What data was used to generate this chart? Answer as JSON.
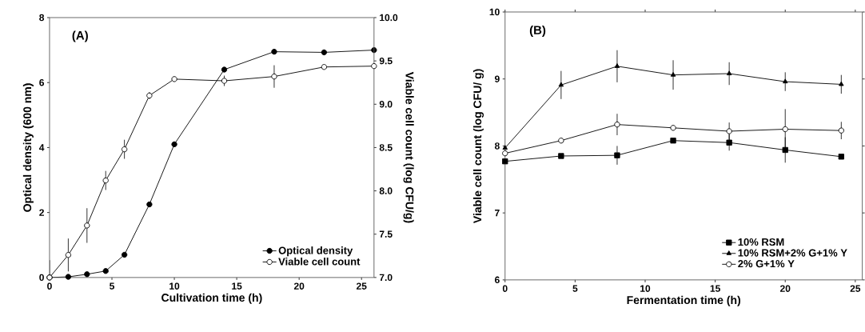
{
  "chart_data": [
    {
      "type": "line",
      "xlabel": "Cultivation time (h)",
      "ylabel": "Optical density (600 nm)",
      "y2label": "Viable cell count (log CFU/g)",
      "annotations": [
        "(A)"
      ],
      "xlim": [
        0,
        26
      ],
      "xticks": [
        0,
        5,
        10,
        15,
        20,
        25
      ],
      "ylim": [
        0,
        8
      ],
      "yticks": [
        0,
        2,
        4,
        6,
        8
      ],
      "y2lim": [
        7,
        10
      ],
      "y2ticks": [
        {
          "value": 7,
          "label": "7.0"
        },
        {
          "value": 7.5,
          "label": "7.5"
        },
        {
          "value": 8,
          "label": "8.0"
        },
        {
          "value": 8.5,
          "label": "8.5"
        },
        {
          "value": 9,
          "label": "9.0"
        },
        {
          "value": 9.5,
          "label": "9.5"
        },
        {
          "value": 10,
          "label": "10.0"
        }
      ],
      "legend": "bottom right",
      "line_style": "solid",
      "series": [
        {
          "name": "Optical density",
          "color": "#000000",
          "marker": "circle",
          "x": [
            0,
            1.5,
            3,
            4.5,
            6,
            8,
            10,
            14,
            18,
            22,
            26
          ],
          "values": [
            0,
            0.02,
            0.1,
            0.2,
            0.7,
            2.25,
            4.1,
            6.4,
            6.95,
            6.93,
            7.0
          ]
        },
        {
          "name": "Viable cell count",
          "color": "#ffffff",
          "marker": "circle",
          "axis": "y2",
          "x": [
            0,
            1.5,
            3,
            4.5,
            6,
            8,
            10,
            14,
            18,
            22,
            26
          ],
          "values": [
            7.0,
            7.26,
            7.6,
            8.12,
            8.48,
            9.1,
            9.29,
            9.27,
            9.32,
            9.43,
            9.44
          ],
          "errors": [
            0.2,
            0.19,
            0.2,
            0.11,
            0.11,
            0.04,
            null,
            0.06,
            0.13,
            null,
            null
          ]
        }
      ]
    },
    {
      "type": "line",
      "xlabel": "Fermentation time (h)",
      "ylabel": "Viable cell count (log CFU/ g)",
      "annotations": [
        "(B)"
      ],
      "xlim": [
        0,
        25.5
      ],
      "xticks": [
        0,
        5,
        10,
        15,
        20,
        25
      ],
      "ylim": [
        6,
        10
      ],
      "yticks": [
        6,
        7,
        8,
        9,
        10
      ],
      "legend": "bottom right",
      "line_style": "solid",
      "series": [
        {
          "name": "10% RSM",
          "color": "#000000",
          "marker": "square",
          "x": [
            0,
            4,
            8,
            12,
            16,
            20,
            24
          ],
          "values": [
            7.77,
            7.85,
            7.86,
            8.08,
            8.05,
            7.94,
            7.84
          ],
          "errors": [
            null,
            null,
            0.14,
            null,
            0.12,
            0.19,
            null
          ]
        },
        {
          "name": "10% RSM+2% G+1% Y",
          "color": "#000000",
          "marker": "triangle",
          "x": [
            0,
            4,
            8,
            12,
            16,
            20,
            24
          ],
          "values": [
            7.97,
            8.91,
            9.19,
            9.06,
            9.08,
            8.96,
            8.92
          ],
          "errors": [
            null,
            0.21,
            0.24,
            0.22,
            0.17,
            0.14,
            0.14
          ]
        },
        {
          "name": "2% G+1% Y",
          "color": "#ffffff",
          "marker": "circle",
          "x": [
            0,
            4,
            8,
            12,
            16,
            20,
            24
          ],
          "values": [
            7.89,
            8.08,
            8.32,
            8.27,
            8.22,
            8.25,
            8.23
          ],
          "errors": [
            null,
            null,
            0.16,
            null,
            0.13,
            0.3,
            0.13
          ]
        }
      ]
    }
  ]
}
